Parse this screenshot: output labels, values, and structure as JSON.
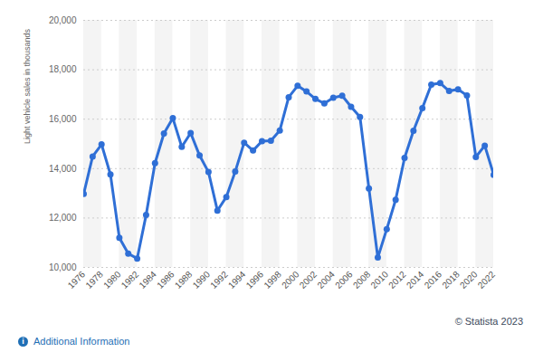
{
  "chart_data": {
    "type": "line",
    "y_label": "Light vehicle sales in thousands",
    "source": "© Statista 2023",
    "note": "Additional Information",
    "x": [
      1976,
      1977,
      1978,
      1979,
      1980,
      1981,
      1982,
      1983,
      1984,
      1985,
      1986,
      1987,
      1988,
      1989,
      1990,
      1991,
      1992,
      1993,
      1994,
      1995,
      1996,
      1997,
      1998,
      1999,
      2000,
      2001,
      2002,
      2003,
      2004,
      2005,
      2006,
      2007,
      2008,
      2009,
      2010,
      2011,
      2012,
      2013,
      2014,
      2015,
      2016,
      2017,
      2018,
      2019,
      2020,
      2021,
      2022
    ],
    "values": [
      12980,
      14490,
      14980,
      13760,
      11200,
      10560,
      10360,
      12120,
      14220,
      15420,
      16040,
      14880,
      15440,
      14530,
      13860,
      12300,
      12850,
      13880,
      15050,
      14730,
      15110,
      15130,
      15540,
      16890,
      17350,
      17120,
      16820,
      16640,
      16870,
      16950,
      16500,
      16090,
      13200,
      10400,
      11550,
      12740,
      14430,
      15530,
      16450,
      17400,
      17460,
      17140,
      17210,
      16960,
      14470,
      14930,
      13750
    ],
    "color": "#2f6fd6",
    "marker": "circle",
    "grid": true,
    "xlim": [
      1976,
      2022
    ],
    "xticks": [
      1976,
      1978,
      1980,
      1982,
      1984,
      1986,
      1988,
      1990,
      1992,
      1994,
      1996,
      1998,
      2000,
      2002,
      2004,
      2006,
      2008,
      2010,
      2012,
      2014,
      2016,
      2018,
      2020,
      2022
    ],
    "ylim": [
      10000,
      20000
    ],
    "yticks": [
      {
        "value": 10000,
        "label": "10,000"
      },
      {
        "value": 12000,
        "label": "12,000"
      },
      {
        "value": 14000,
        "label": "14,000"
      },
      {
        "value": 16000,
        "label": "16,000"
      },
      {
        "value": 18000,
        "label": "18,000"
      },
      {
        "value": 20000,
        "label": "20,000"
      }
    ]
  }
}
